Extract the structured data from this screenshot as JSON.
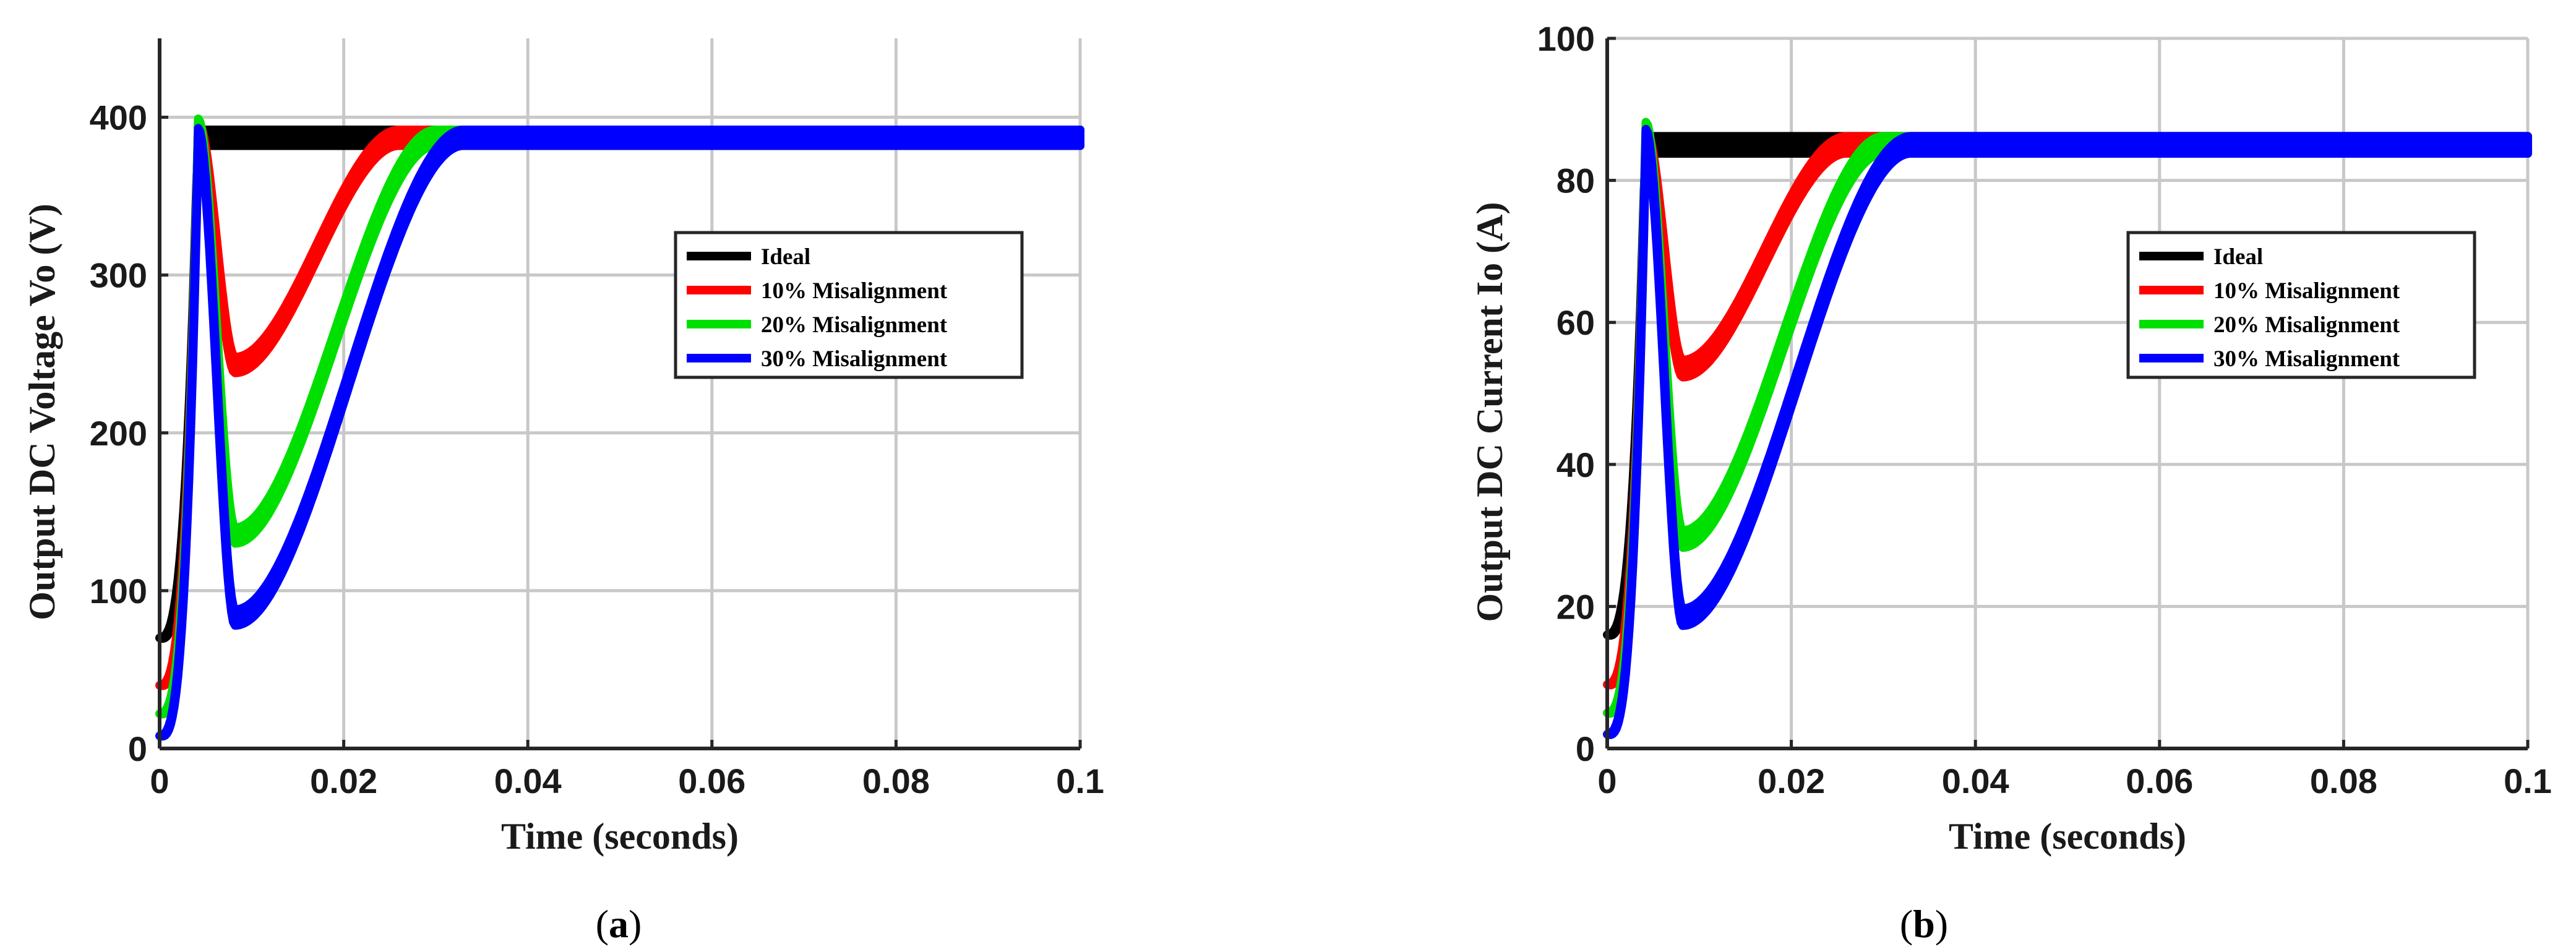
{
  "chart_data": [
    {
      "type": "line",
      "caption": "a",
      "xlabel": "Time (seconds)",
      "ylabel": "Output DC Voltage Vo (V)",
      "xlim": [
        0,
        0.1
      ],
      "ylim": [
        0,
        450
      ],
      "xticks": [
        "0",
        "0.02",
        "0.04",
        "0.06",
        "0.08",
        "0.1"
      ],
      "yticks": [
        "0",
        "100",
        "200",
        "300",
        "400"
      ],
      "grid": true,
      "legend_position": "center-right",
      "series": [
        {
          "name": "Ideal",
          "color": "#000000",
          "start": 70,
          "peak": 395,
          "peak_t": 0.0042,
          "dip": 380,
          "dip_t": 0.0042,
          "steady": 387,
          "ripple": 10,
          "settle_t": 0.005
        },
        {
          "name": "10% Misalignment",
          "color": "#ff0000",
          "start": 40,
          "peak": 392,
          "peak_t": 0.0042,
          "dip": 243,
          "dip_t": 0.0082,
          "steady": 387,
          "ripple": 10,
          "settle_t": 0.026
        },
        {
          "name": "20% Misalignment",
          "color": "#00e000",
          "start": 22,
          "peak": 394,
          "peak_t": 0.0042,
          "dip": 135,
          "dip_t": 0.0082,
          "steady": 387,
          "ripple": 10,
          "settle_t": 0.03
        },
        {
          "name": "30% Misalignment",
          "color": "#0000ff",
          "start": 8,
          "peak": 388,
          "peak_t": 0.0042,
          "dip": 83,
          "dip_t": 0.0082,
          "steady": 387,
          "ripple": 10,
          "settle_t": 0.033
        }
      ]
    },
    {
      "type": "line",
      "caption": "b",
      "xlabel": "Time (seconds)",
      "ylabel": "Output DC Current Io (A)",
      "xlim": [
        0,
        0.1
      ],
      "ylim": [
        0,
        100
      ],
      "xticks": [
        "0",
        "0.02",
        "0.04",
        "0.06",
        "0.08",
        "0.1"
      ],
      "yticks": [
        "0",
        "20",
        "40",
        "60",
        "80",
        "100"
      ],
      "grid": true,
      "legend_position": "center-right",
      "series": [
        {
          "name": "Ideal",
          "color": "#000000",
          "start": 16,
          "peak": 87,
          "peak_t": 0.0042,
          "dip": 83,
          "dip_t": 0.0042,
          "steady": 85,
          "ripple": 2.4,
          "settle_t": 0.005
        },
        {
          "name": "10% Misalignment",
          "color": "#ff0000",
          "start": 9,
          "peak": 86,
          "peak_t": 0.0042,
          "dip": 53.5,
          "dip_t": 0.0082,
          "steady": 85,
          "ripple": 2.4,
          "settle_t": 0.026
        },
        {
          "name": "20% Misalignment",
          "color": "#00e000",
          "start": 5,
          "peak": 87,
          "peak_t": 0.0042,
          "dip": 29.5,
          "dip_t": 0.0082,
          "steady": 85,
          "ripple": 2.4,
          "settle_t": 0.03
        },
        {
          "name": "30% Misalignment",
          "color": "#0000ff",
          "start": 2,
          "peak": 86,
          "peak_t": 0.0042,
          "dip": 18.5,
          "dip_t": 0.0082,
          "steady": 85,
          "ripple": 2.4,
          "settle_t": 0.033
        }
      ]
    }
  ]
}
